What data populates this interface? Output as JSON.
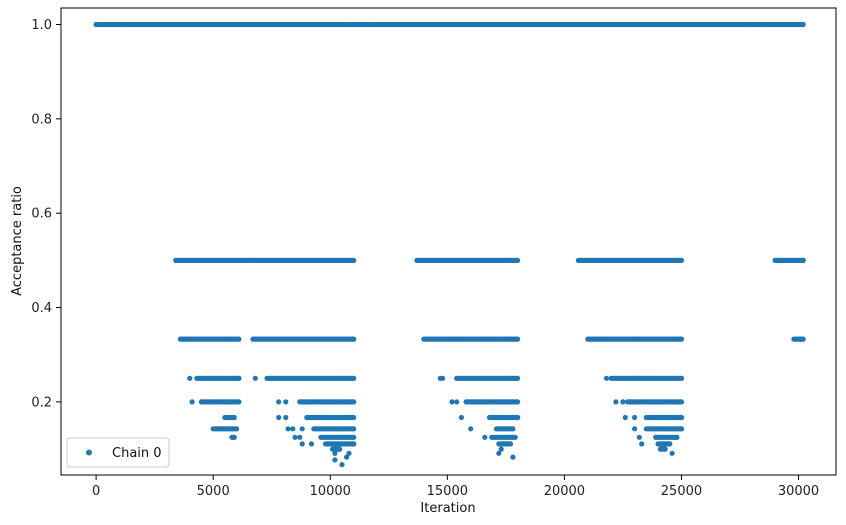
{
  "chart_data": {
    "type": "scatter",
    "xlabel": "Iteration",
    "ylabel": "Acceptance ratio",
    "xlim": [
      -1500,
      31600
    ],
    "ylim": [
      0.045,
      1.035
    ],
    "x_ticks": [
      0,
      5000,
      10000,
      15000,
      20000,
      25000,
      30000
    ],
    "x_tick_labels": [
      "0",
      "5000",
      "10000",
      "15000",
      "20000",
      "25000",
      "30000"
    ],
    "y_ticks": [
      0.2,
      0.4,
      0.6,
      0.8,
      1.0
    ],
    "y_tick_labels": [
      "0.2",
      "0.4",
      "0.6",
      "0.8",
      "1.0"
    ],
    "grid": false,
    "legend_position": "bottom-left",
    "series": [
      {
        "name": "Chain 0",
        "color": "#1f77b4",
        "marker": "dot",
        "segments": [
          {
            "y": 1.0,
            "x_start": 0,
            "x_end": 30200
          },
          {
            "y": 0.5,
            "x_start": 3400,
            "x_end": 11000
          },
          {
            "y": 0.5,
            "x_start": 13700,
            "x_end": 18000
          },
          {
            "y": 0.5,
            "x_start": 20600,
            "x_end": 25000
          },
          {
            "y": 0.5,
            "x_start": 29000,
            "x_end": 30200
          },
          {
            "y": 0.333,
            "x_start": 3600,
            "x_end": 6100
          },
          {
            "y": 0.333,
            "x_start": 6700,
            "x_end": 11000
          },
          {
            "y": 0.333,
            "x_start": 14000,
            "x_end": 18000
          },
          {
            "y": 0.333,
            "x_start": 21000,
            "x_end": 25000
          },
          {
            "y": 0.333,
            "x_start": 29800,
            "x_end": 30200
          },
          {
            "y": 0.25,
            "x_start": 4300,
            "x_end": 6100
          },
          {
            "y": 0.25,
            "x_start": 7300,
            "x_end": 11000
          },
          {
            "y": 0.25,
            "x_start": 15400,
            "x_end": 18000
          },
          {
            "y": 0.25,
            "x_start": 22000,
            "x_end": 25000
          },
          {
            "y": 0.2,
            "x_start": 4500,
            "x_end": 6100
          },
          {
            "y": 0.2,
            "x_start": 8700,
            "x_end": 11000
          },
          {
            "y": 0.2,
            "x_start": 15800,
            "x_end": 18000
          },
          {
            "y": 0.2,
            "x_start": 22700,
            "x_end": 25000
          },
          {
            "y": 0.167,
            "x_start": 5500,
            "x_end": 5900
          },
          {
            "y": 0.167,
            "x_start": 9000,
            "x_end": 11000
          },
          {
            "y": 0.167,
            "x_start": 16800,
            "x_end": 18000
          },
          {
            "y": 0.167,
            "x_start": 23500,
            "x_end": 25000
          },
          {
            "y": 0.143,
            "x_start": 5000,
            "x_end": 6000
          },
          {
            "y": 0.143,
            "x_start": 9300,
            "x_end": 11000
          },
          {
            "y": 0.143,
            "x_start": 17100,
            "x_end": 17800
          },
          {
            "y": 0.143,
            "x_start": 23500,
            "x_end": 25000
          },
          {
            "y": 0.125,
            "x_start": 5800,
            "x_end": 5900
          },
          {
            "y": 0.125,
            "x_start": 9600,
            "x_end": 11000
          },
          {
            "y": 0.125,
            "x_start": 16900,
            "x_end": 17900
          },
          {
            "y": 0.125,
            "x_start": 23900,
            "x_end": 24800
          },
          {
            "y": 0.111,
            "x_start": 9800,
            "x_end": 11000
          },
          {
            "y": 0.111,
            "x_start": 17200,
            "x_end": 17700
          },
          {
            "y": 0.111,
            "x_start": 24000,
            "x_end": 24500
          },
          {
            "y": 0.1,
            "x_start": 10100,
            "x_end": 10400
          },
          {
            "y": 0.1,
            "x_start": 24100,
            "x_end": 24300
          }
        ],
        "points": [
          {
            "x": 4000,
            "y": 0.25
          },
          {
            "x": 4100,
            "y": 0.2
          },
          {
            "x": 6800,
            "y": 0.25
          },
          {
            "x": 7800,
            "y": 0.2
          },
          {
            "x": 8100,
            "y": 0.2
          },
          {
            "x": 7800,
            "y": 0.167
          },
          {
            "x": 8100,
            "y": 0.167
          },
          {
            "x": 8200,
            "y": 0.143
          },
          {
            "x": 8400,
            "y": 0.143
          },
          {
            "x": 8800,
            "y": 0.143
          },
          {
            "x": 8500,
            "y": 0.125
          },
          {
            "x": 8700,
            "y": 0.125
          },
          {
            "x": 8800,
            "y": 0.111
          },
          {
            "x": 9200,
            "y": 0.111
          },
          {
            "x": 10200,
            "y": 0.091
          },
          {
            "x": 10800,
            "y": 0.091
          },
          {
            "x": 10700,
            "y": 0.083
          },
          {
            "x": 10200,
            "y": 0.077
          },
          {
            "x": 10500,
            "y": 0.067
          },
          {
            "x": 14700,
            "y": 0.25
          },
          {
            "x": 14800,
            "y": 0.25
          },
          {
            "x": 15200,
            "y": 0.2
          },
          {
            "x": 15400,
            "y": 0.2
          },
          {
            "x": 15600,
            "y": 0.167
          },
          {
            "x": 16000,
            "y": 0.143
          },
          {
            "x": 16600,
            "y": 0.125
          },
          {
            "x": 17400,
            "y": 0.111
          },
          {
            "x": 17200,
            "y": 0.091
          },
          {
            "x": 17300,
            "y": 0.1
          },
          {
            "x": 17800,
            "y": 0.083
          },
          {
            "x": 21800,
            "y": 0.25
          },
          {
            "x": 22200,
            "y": 0.2
          },
          {
            "x": 22500,
            "y": 0.2
          },
          {
            "x": 22600,
            "y": 0.167
          },
          {
            "x": 23000,
            "y": 0.167
          },
          {
            "x": 23000,
            "y": 0.143
          },
          {
            "x": 23200,
            "y": 0.125
          },
          {
            "x": 23300,
            "y": 0.111
          },
          {
            "x": 24600,
            "y": 0.091
          },
          {
            "x": 24300,
            "y": 0.1
          },
          {
            "x": 30100,
            "y": 0.333
          }
        ]
      }
    ]
  }
}
